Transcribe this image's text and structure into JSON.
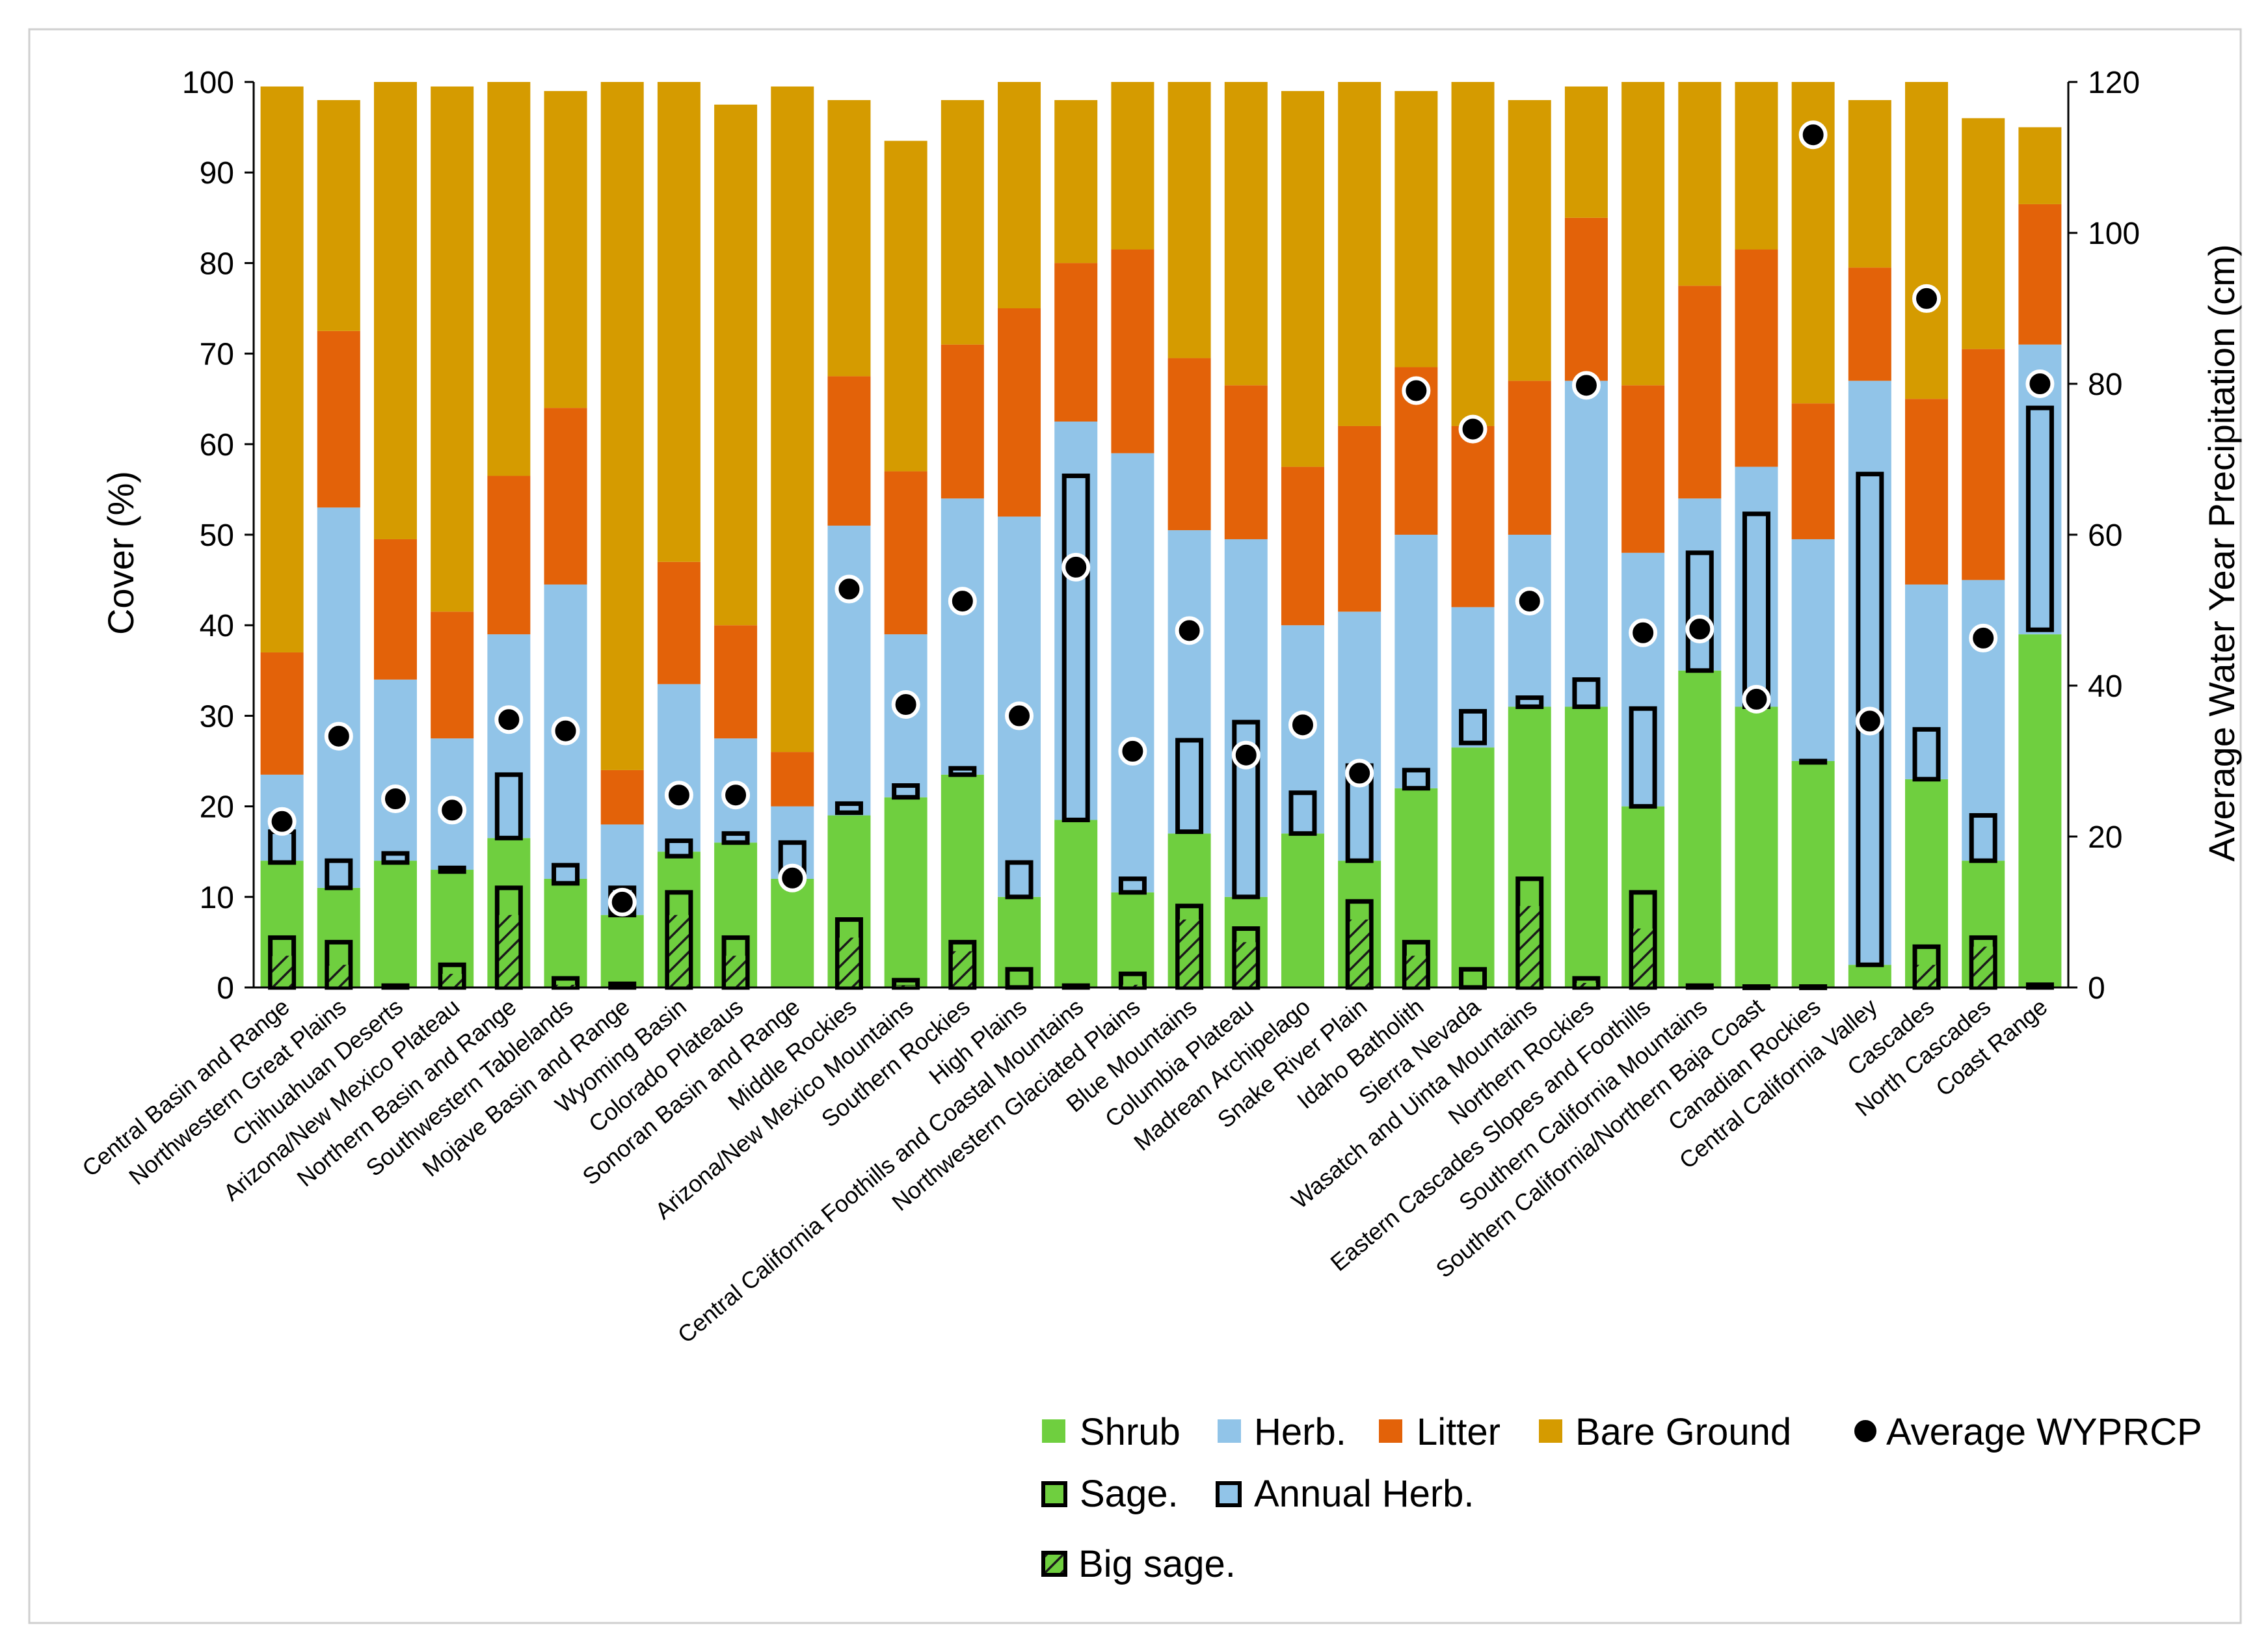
{
  "chart_data": {
    "type": "bar",
    "subtype": "stacked-bar-with-overlays",
    "title": "",
    "xlabel": "",
    "ylabel": "Cover (%)",
    "y2label": "Average Water Year Precipitation (cm)",
    "ylim": [
      0,
      100
    ],
    "y2lim": [
      0,
      120
    ],
    "yticks": [
      "0",
      "10",
      "20",
      "30",
      "40",
      "50",
      "60",
      "70",
      "80",
      "90",
      "100"
    ],
    "y2ticks": [
      "0",
      "20",
      "40",
      "60",
      "80",
      "100",
      "120"
    ],
    "grid": false,
    "legend_position": "bottom-right",
    "colors": {
      "shrub": "#6fcf3f",
      "herb": "#91c4e8",
      "litter": "#e36209",
      "bare": "#d59b00",
      "precip": "#000000",
      "box_edge": "#000000"
    },
    "legend": {
      "shrub": "Shrub",
      "herb": "Herb.",
      "litter": "Litter",
      "bare": "Bare Ground",
      "precip": "Average WYPRCP",
      "sage": "Sage.",
      "annual": "Annual Herb.",
      "bigsage": "Big sage."
    },
    "categories": [
      "Central Basin and Range",
      "Northwestern Great Plains",
      "Chihuahuan Deserts",
      "Arizona/New Mexico Plateau",
      "Northern Basin and Range",
      "Southwestern Tablelands",
      "Mojave Basin and Range",
      "Wyoming Basin",
      "Colorado Plateaus",
      "Sonoran Basin and Range",
      "Middle Rockies",
      "Arizona/New Mexico Mountains",
      "Southern Rockies",
      "High Plains",
      "Central California Foothills and Coastal Mountains",
      "Northwestern Glaciated Plains",
      "Blue Mountains",
      "Columbia Plateau",
      "Madrean Archipelago",
      "Snake River Plain",
      "Idaho Batholith",
      "Sierra Nevada",
      "Wasatch and Uinta Mountains",
      "Northern Rockies",
      "Eastern Cascades Slopes and Foothills",
      "Southern California Mountains",
      "Southern California/Northern Baja Coast",
      "Canadian Rockies",
      "Central California Valley",
      "Cascades",
      "North Cascades",
      "Coast Range"
    ],
    "series": [
      {
        "key": "shrub",
        "name": "Shrub",
        "unit": "% cover",
        "values": [
          14,
          11,
          14,
          13,
          16.5,
          12,
          8,
          15,
          16,
          12,
          19,
          21,
          23.5,
          10,
          18.5,
          10.5,
          17,
          10,
          17,
          14,
          22,
          26.5,
          31,
          31,
          20,
          35,
          31,
          25,
          2.5,
          23,
          14,
          39
        ]
      },
      {
        "key": "herb",
        "name": "Herb.",
        "unit": "% cover",
        "values": [
          9.5,
          42,
          20,
          14.5,
          22.5,
          32.5,
          10,
          18.5,
          11.5,
          8,
          32,
          18,
          30.5,
          42,
          44,
          48.5,
          33.5,
          39.5,
          23,
          27.5,
          28,
          15.5,
          19,
          36,
          28,
          19,
          26.5,
          24.5,
          64.5,
          21.5,
          31,
          32
        ]
      },
      {
        "key": "litter",
        "name": "Litter",
        "unit": "% cover",
        "values": [
          13.5,
          19.5,
          15.5,
          14,
          17.5,
          19.5,
          6,
          13.5,
          12.5,
          6,
          16.5,
          18,
          17,
          23,
          17.5,
          22.5,
          19,
          17,
          17.5,
          20.5,
          18.5,
          20,
          17,
          18,
          18.5,
          23.5,
          24,
          15,
          12.5,
          20.5,
          25.5,
          15.5
        ]
      },
      {
        "key": "bare",
        "name": "Bare Ground",
        "unit": "% cover",
        "values": [
          62.5,
          25.5,
          50.5,
          58,
          43.5,
          35,
          76,
          53,
          57.5,
          73.5,
          30.5,
          36.5,
          27,
          25,
          18,
          19,
          30.5,
          33.5,
          41.5,
          38,
          30.5,
          38,
          31,
          14.5,
          33.5,
          22.5,
          18.5,
          35.5,
          18.5,
          35,
          25.5,
          8.5
        ]
      },
      {
        "key": "sage",
        "name": "Sage.",
        "unit": "% cover",
        "values": [
          5.5,
          5,
          0.2,
          2.5,
          11,
          1,
          0.4,
          10.5,
          5.5,
          0,
          7.5,
          0.8,
          5,
          2,
          0.2,
          1.5,
          9,
          6.5,
          0,
          9.5,
          5,
          2,
          12,
          1,
          10.5,
          0.2,
          0.1,
          0.1,
          0,
          4.5,
          5.5,
          0.3
        ]
      },
      {
        "key": "bigsage",
        "name": "Big sage.",
        "unit": "% cover",
        "values": [
          3.5,
          2.5,
          0,
          1.5,
          8,
          0.3,
          0.1,
          8,
          3.5,
          0,
          5.5,
          0.2,
          4,
          0,
          0,
          0.3,
          7.5,
          5,
          0,
          7.5,
          3.5,
          0,
          9,
          0.5,
          6.5,
          0,
          0,
          0,
          0,
          2.5,
          4.5,
          0
        ]
      },
      {
        "key": "annual_low",
        "name": "Annual Herb. (lower)",
        "unit": "% cover",
        "values": [
          13.8,
          11,
          13.8,
          12.8,
          16.5,
          11.5,
          8,
          14.5,
          16,
          12,
          19.3,
          21,
          23.5,
          10,
          18.5,
          10.5,
          17.2,
          10,
          17,
          14,
          22,
          27,
          31,
          31,
          20,
          35,
          31,
          25,
          2.5,
          23,
          14,
          39.5
        ]
      },
      {
        "key": "annual_high",
        "name": "Annual Herb. (upper)",
        "unit": "% cover",
        "values": [
          17.2,
          14,
          14.8,
          13.2,
          23.5,
          13.5,
          11,
          16.2,
          17,
          16,
          20.3,
          22.3,
          24.2,
          13.8,
          56.5,
          12,
          27.3,
          29.3,
          21.5,
          24.5,
          24,
          30.5,
          32,
          34,
          30.8,
          48,
          52.3,
          25,
          56.7,
          28.5,
          19,
          64
        ]
      },
      {
        "key": "precip",
        "name": "Average WYPRCP",
        "unit": "cm",
        "axis": "y2",
        "values": [
          22,
          33.3,
          25,
          23.5,
          35.5,
          34,
          11.3,
          25.5,
          25.5,
          14.5,
          52.8,
          37.5,
          51.2,
          36,
          55.7,
          31.3,
          47.3,
          30.8,
          34.8,
          28.4,
          79.1,
          74,
          51.2,
          79.8,
          47,
          47.5,
          38.2,
          113,
          35.3,
          91.3,
          46.3,
          80
        ]
      }
    ]
  }
}
